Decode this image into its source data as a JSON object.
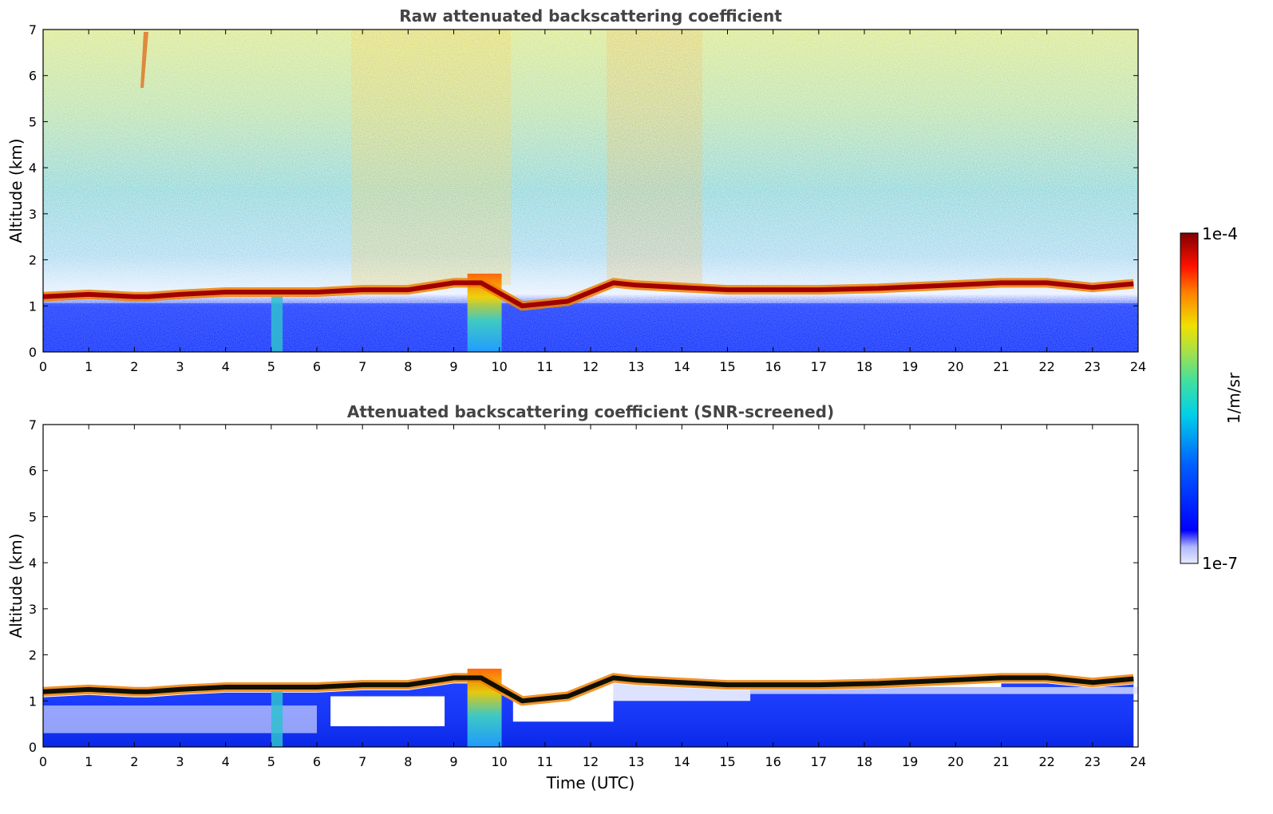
{
  "chart_data": [
    {
      "type": "heatmap",
      "title": "Raw attenuated backscattering coefficient",
      "xlabel": "",
      "ylabel": "Altitude (km)",
      "xlim": [
        0,
        24
      ],
      "ylim": [
        0,
        7
      ],
      "xticks": [
        0,
        1,
        2,
        3,
        4,
        5,
        6,
        7,
        8,
        9,
        10,
        11,
        12,
        13,
        14,
        15,
        16,
        17,
        18,
        19,
        20,
        21,
        22,
        23,
        24
      ],
      "yticks": [
        0,
        1,
        2,
        3,
        4,
        5,
        6,
        7
      ],
      "cloud_layer_altitude_km": [
        [
          0.0,
          1.2
        ],
        [
          1.0,
          1.25
        ],
        [
          2.0,
          1.2
        ],
        [
          2.3,
          1.2
        ],
        [
          3.0,
          1.25
        ],
        [
          4.0,
          1.3
        ],
        [
          5.0,
          1.3
        ],
        [
          6.0,
          1.3
        ],
        [
          7.0,
          1.35
        ],
        [
          8.0,
          1.35
        ],
        [
          9.0,
          1.5
        ],
        [
          9.6,
          1.5
        ],
        [
          10.5,
          1.0
        ],
        [
          11.5,
          1.1
        ],
        [
          12.5,
          1.5
        ],
        [
          13.0,
          1.45
        ],
        [
          14.0,
          1.4
        ],
        [
          15.0,
          1.35
        ],
        [
          16.0,
          1.35
        ],
        [
          17.0,
          1.35
        ],
        [
          18.3,
          1.38
        ],
        [
          21.0,
          1.5
        ],
        [
          22.0,
          1.5
        ],
        [
          23.0,
          1.4
        ],
        [
          23.9,
          1.48
        ]
      ],
      "noise_screened": false
    },
    {
      "type": "heatmap",
      "title": "Attenuated backscattering coefficient (SNR-screened)",
      "xlabel": "Time (UTC)",
      "ylabel": "Altitude (km)",
      "xlim": [
        0,
        24
      ],
      "ylim": [
        0,
        7
      ],
      "xticks": [
        0,
        1,
        2,
        3,
        4,
        5,
        6,
        7,
        8,
        9,
        10,
        11,
        12,
        13,
        14,
        15,
        16,
        17,
        18,
        19,
        20,
        21,
        22,
        23,
        24
      ],
      "yticks": [
        0,
        1,
        2,
        3,
        4,
        5,
        6,
        7
      ],
      "cloud_layer_altitude_km": [
        [
          0.0,
          1.2
        ],
        [
          1.0,
          1.25
        ],
        [
          2.0,
          1.2
        ],
        [
          2.3,
          1.2
        ],
        [
          3.0,
          1.25
        ],
        [
          4.0,
          1.3
        ],
        [
          5.0,
          1.3
        ],
        [
          6.0,
          1.3
        ],
        [
          7.0,
          1.35
        ],
        [
          8.0,
          1.35
        ],
        [
          9.0,
          1.5
        ],
        [
          9.6,
          1.5
        ],
        [
          10.5,
          1.0
        ],
        [
          11.5,
          1.1
        ],
        [
          12.5,
          1.5
        ],
        [
          13.0,
          1.45
        ],
        [
          14.0,
          1.4
        ],
        [
          15.0,
          1.35
        ],
        [
          16.0,
          1.35
        ],
        [
          17.0,
          1.35
        ],
        [
          18.3,
          1.38
        ],
        [
          21.0,
          1.5
        ],
        [
          22.0,
          1.5
        ],
        [
          23.0,
          1.4
        ],
        [
          23.9,
          1.48
        ]
      ],
      "noise_screened": true
    }
  ],
  "colorbar": {
    "label": "1/m/sr",
    "max_label": "1e-4",
    "min_label": "1e-7",
    "scale": "log",
    "colormap": "jet",
    "colors": [
      "#e8eaff",
      "#b0b8ff",
      "#0000ff",
      "#0080ff",
      "#00e0e0",
      "#60e080",
      "#e0e000",
      "#ff8000",
      "#ff0000",
      "#800000"
    ]
  }
}
